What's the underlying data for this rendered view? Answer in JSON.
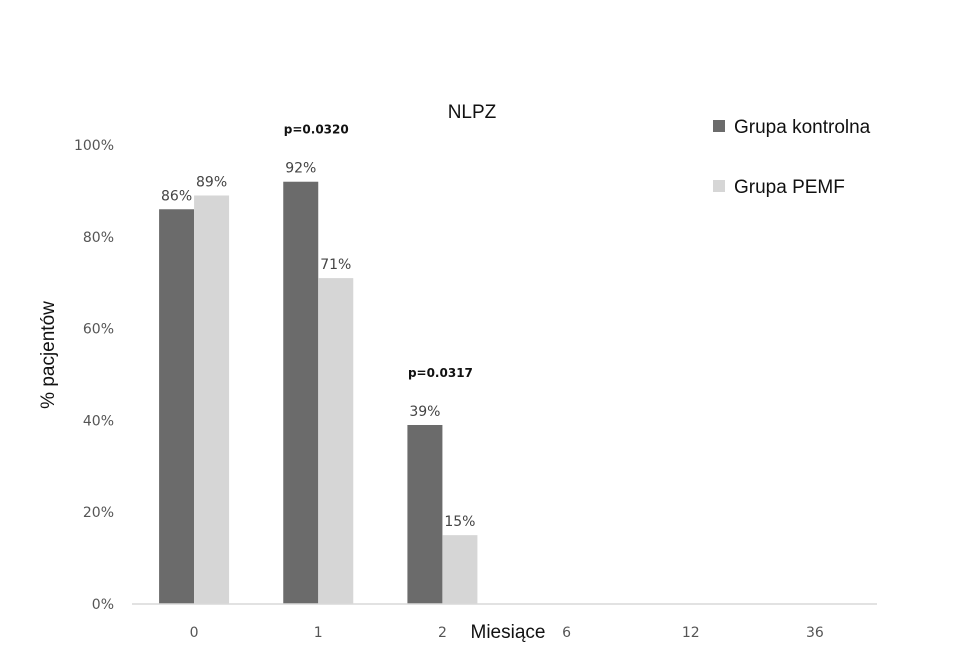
{
  "chart_data": {
    "type": "bar",
    "title": "NLPZ",
    "xlabel": "Miesiące",
    "ylabel": "% pacjentów",
    "categories": [
      "0",
      "1",
      "2",
      "6",
      "12",
      "36"
    ],
    "series": [
      {
        "name": "Grupa kontrolna",
        "color": "#6b6b6b",
        "values": [
          86,
          92,
          39,
          0,
          0,
          0
        ],
        "labels": [
          "86%",
          "92%",
          "39%",
          "",
          "",
          ""
        ]
      },
      {
        "name": "Grupa PEMF",
        "color": "#d6d6d6",
        "values": [
          89,
          71,
          15,
          0,
          0,
          0
        ],
        "labels": [
          "89%",
          "71%",
          "15%",
          "",
          "",
          ""
        ]
      }
    ],
    "ylim": [
      0,
      100
    ],
    "yticks": [
      {
        "value": 0,
        "label": "0%"
      },
      {
        "value": 20,
        "label": "20%"
      },
      {
        "value": 40,
        "label": "40%"
      },
      {
        "value": 60,
        "label": "60%"
      },
      {
        "value": 80,
        "label": "80%"
      },
      {
        "value": 100,
        "label": "100%"
      }
    ],
    "annotations": [
      {
        "category": "1",
        "text": "p=0.0320"
      },
      {
        "category": "2",
        "text": "p=0.0317"
      }
    ],
    "grid": false,
    "legend_position": "top-right"
  }
}
